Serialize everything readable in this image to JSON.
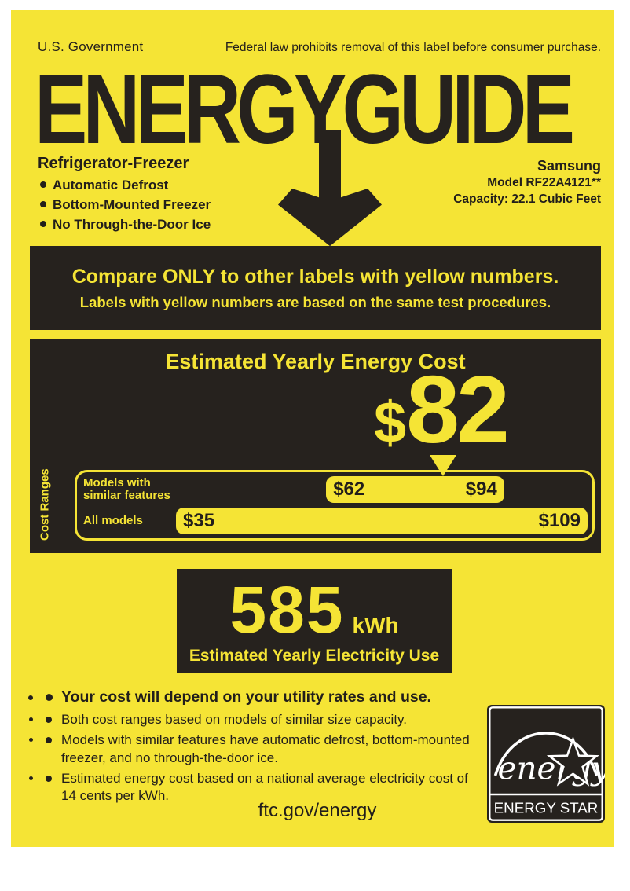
{
  "header": {
    "government_label": "U.S. Government",
    "legal_notice": "Federal law prohibits removal of this label before consumer purchase.",
    "logo_text": "ENERGYGUIDE"
  },
  "product": {
    "category": "Refrigerator-Freezer",
    "features": [
      "Automatic Defrost",
      "Bottom-Mounted Freezer",
      "No Through-the-Door Ice"
    ],
    "brand": "Samsung",
    "model": "Model RF22A4121**",
    "capacity": "Capacity: 22.1 Cubic Feet"
  },
  "compare_banner": {
    "headline": "Compare ONLY to other labels with yellow numbers.",
    "subline": "Labels with yellow numbers are based on the same test procedures."
  },
  "yearly_cost": {
    "title": "Estimated Yearly Energy Cost",
    "currency_symbol": "$",
    "amount": "82"
  },
  "chart_data": {
    "type": "bar",
    "title": "Cost Ranges",
    "axis_label": "Cost Ranges",
    "scale_min": 35,
    "scale_max": 109,
    "marker_value": 82,
    "rows": [
      {
        "label": "Models with similar features",
        "min": 62,
        "max": 94,
        "min_label": "$62",
        "max_label": "$94"
      },
      {
        "label": "All models",
        "min": 35,
        "max": 109,
        "min_label": "$35",
        "max_label": "$109"
      }
    ]
  },
  "electricity_use": {
    "value": "585",
    "unit": "kWh",
    "caption": "Estimated Yearly Electricity Use"
  },
  "notes": {
    "items": [
      {
        "text": "Your cost will depend on your utility rates and use.",
        "emphasis": true
      },
      {
        "text": "Both cost ranges based on models of similar size capacity.",
        "emphasis": false
      },
      {
        "text": "Models with similar features have automatic defrost, bottom-mounted freezer, and no through-the-door ice.",
        "emphasis": false
      },
      {
        "text": "Estimated energy cost based on a national average electricity cost of 14 cents per kWh.",
        "emphasis": false
      }
    ]
  },
  "footer": {
    "url": "ftc.gov/energy"
  },
  "energy_star": {
    "script_text": "energy",
    "caption": "ENERGY STAR"
  },
  "colors": {
    "label_yellow": "#F5E435",
    "print_black": "#26221E",
    "text_black": "#221E1B"
  }
}
